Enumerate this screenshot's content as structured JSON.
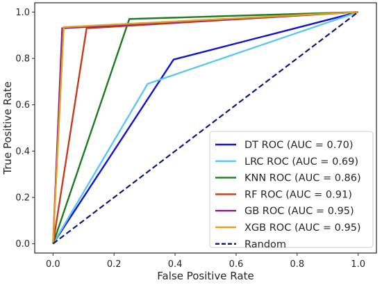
{
  "chart_data": {
    "type": "line",
    "title": "",
    "xlabel": "False Positive Rate",
    "ylabel": "True Positive Rate",
    "xlim": [
      -0.06,
      1.06
    ],
    "ylim": [
      -0.04,
      1.04
    ],
    "xticks": [
      0.0,
      0.2,
      0.4,
      0.6,
      0.8,
      1.0
    ],
    "yticks": [
      0.0,
      0.2,
      0.4,
      0.6,
      0.8,
      1.0
    ],
    "xtick_labels": [
      "0.0",
      "0.2",
      "0.4",
      "0.6",
      "0.8",
      "1.0"
    ],
    "ytick_labels": [
      "0.0",
      "0.2",
      "0.4",
      "0.6",
      "0.8",
      "1.0"
    ],
    "grid": false,
    "legend_position": "lower-right",
    "series": [
      {
        "name": "DT ROC (AUC = 0.70)",
        "color": "#1010d8",
        "dash": "solid",
        "x": [
          0.0,
          0.395,
          1.0
        ],
        "y": [
          0.0,
          0.795,
          1.0
        ]
      },
      {
        "name": "LRC ROC (AUC = 0.69)",
        "color": "#5bc8f0",
        "dash": "solid",
        "x": [
          0.0,
          0.31,
          1.0
        ],
        "y": [
          0.0,
          0.69,
          1.0
        ]
      },
      {
        "name": "KNN ROC (AUC = 0.86)",
        "color": "#1e7a1e",
        "dash": "solid",
        "x": [
          0.0,
          0.25,
          1.0
        ],
        "y": [
          0.0,
          0.97,
          1.0
        ]
      },
      {
        "name": "RF ROC (AUC = 0.91)",
        "color": "#c83a1e",
        "dash": "solid",
        "x": [
          0.0,
          0.11,
          1.0
        ],
        "y": [
          0.0,
          0.93,
          1.0
        ]
      },
      {
        "name": "GB ROC (AUC = 0.95)",
        "color": "#8a1f8a",
        "dash": "solid",
        "x": [
          0.0,
          0.03,
          1.0
        ],
        "y": [
          0.0,
          0.93,
          1.0
        ]
      },
      {
        "name": "XGB ROC (AUC = 0.95)",
        "color": "#e0a020",
        "dash": "solid",
        "x": [
          0.0,
          0.035,
          1.0
        ],
        "y": [
          0.0,
          0.935,
          1.0
        ]
      },
      {
        "name": "Random",
        "color": "#0d1580",
        "dash": "dashed",
        "x": [
          0.0,
          1.0
        ],
        "y": [
          0.0,
          1.0
        ]
      }
    ]
  }
}
